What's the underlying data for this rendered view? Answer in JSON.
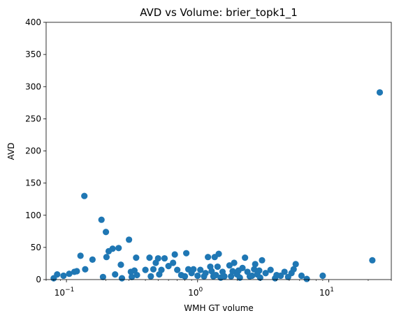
{
  "chart_data": {
    "type": "scatter",
    "title": "AVD vs Volume: brier_topk1_1",
    "xlabel": "WMH GT volume",
    "ylabel": "AVD",
    "xscale": "log",
    "xlim": [
      0.07,
      30
    ],
    "ylim": [
      0,
      400
    ],
    "x_ticks": [
      {
        "value": 0.1,
        "base": "10",
        "exp": "−1"
      },
      {
        "value": 1,
        "base": "10",
        "exp": "0"
      },
      {
        "value": 10,
        "base": "10",
        "exp": "1"
      }
    ],
    "y_ticks": [
      {
        "value": 0,
        "label": "0"
      },
      {
        "value": 50,
        "label": "50"
      },
      {
        "value": 100,
        "label": "100"
      },
      {
        "value": 150,
        "label": "150"
      },
      {
        "value": 200,
        "label": "200"
      },
      {
        "value": 250,
        "label": "250"
      },
      {
        "value": 300,
        "label": "300"
      },
      {
        "value": 350,
        "label": "350"
      },
      {
        "value": 400,
        "label": "400"
      }
    ],
    "grid": false,
    "marker_color": "#1f77b4",
    "points": [
      [
        0.08,
        2
      ],
      [
        0.085,
        8
      ],
      [
        0.095,
        6
      ],
      [
        0.105,
        9
      ],
      [
        0.115,
        12
      ],
      [
        0.12,
        13
      ],
      [
        0.128,
        37
      ],
      [
        0.137,
        130
      ],
      [
        0.139,
        16
      ],
      [
        0.158,
        31
      ],
      [
        0.185,
        93
      ],
      [
        0.19,
        4
      ],
      [
        0.2,
        74
      ],
      [
        0.202,
        35
      ],
      [
        0.21,
        44
      ],
      [
        0.225,
        48
      ],
      [
        0.235,
        8
      ],
      [
        0.25,
        49
      ],
      [
        0.26,
        23
      ],
      [
        0.265,
        2
      ],
      [
        0.3,
        62
      ],
      [
        0.31,
        12
      ],
      [
        0.315,
        4
      ],
      [
        0.33,
        14
      ],
      [
        0.34,
        34
      ],
      [
        0.345,
        7
      ],
      [
        0.4,
        15
      ],
      [
        0.43,
        34
      ],
      [
        0.44,
        5
      ],
      [
        0.46,
        16
      ],
      [
        0.48,
        26
      ],
      [
        0.5,
        33
      ],
      [
        0.51,
        8
      ],
      [
        0.53,
        15
      ],
      [
        0.56,
        33
      ],
      [
        0.6,
        21
      ],
      [
        0.65,
        26
      ],
      [
        0.67,
        39
      ],
      [
        0.7,
        15
      ],
      [
        0.75,
        7
      ],
      [
        0.8,
        5
      ],
      [
        0.82,
        41
      ],
      [
        0.85,
        16
      ],
      [
        0.9,
        10
      ],
      [
        0.93,
        16
      ],
      [
        1.0,
        6
      ],
      [
        1.05,
        15
      ],
      [
        1.12,
        5
      ],
      [
        1.15,
        10
      ],
      [
        1.2,
        35
      ],
      [
        1.25,
        20
      ],
      [
        1.28,
        13
      ],
      [
        1.32,
        5
      ],
      [
        1.35,
        35
      ],
      [
        1.38,
        7
      ],
      [
        1.42,
        20
      ],
      [
        1.45,
        40
      ],
      [
        1.5,
        3
      ],
      [
        1.55,
        12
      ],
      [
        1.6,
        5
      ],
      [
        1.75,
        22
      ],
      [
        1.8,
        5
      ],
      [
        1.85,
        13
      ],
      [
        1.9,
        26
      ],
      [
        2.0,
        8
      ],
      [
        2.05,
        14
      ],
      [
        2.1,
        3
      ],
      [
        2.2,
        18
      ],
      [
        2.3,
        34
      ],
      [
        2.4,
        12
      ],
      [
        2.5,
        5
      ],
      [
        2.6,
        6
      ],
      [
        2.7,
        16
      ],
      [
        2.75,
        24
      ],
      [
        2.85,
        8
      ],
      [
        2.95,
        14
      ],
      [
        3.0,
        3
      ],
      [
        3.1,
        30
      ],
      [
        3.3,
        10
      ],
      [
        3.6,
        15
      ],
      [
        3.9,
        2
      ],
      [
        4.0,
        7
      ],
      [
        4.3,
        6
      ],
      [
        4.6,
        12
      ],
      [
        4.9,
        4
      ],
      [
        5.2,
        10
      ],
      [
        5.4,
        16
      ],
      [
        5.6,
        24
      ],
      [
        6.2,
        6
      ],
      [
        6.8,
        1
      ],
      [
        9.0,
        6
      ],
      [
        21.5,
        30
      ],
      [
        24.5,
        291
      ]
    ]
  }
}
